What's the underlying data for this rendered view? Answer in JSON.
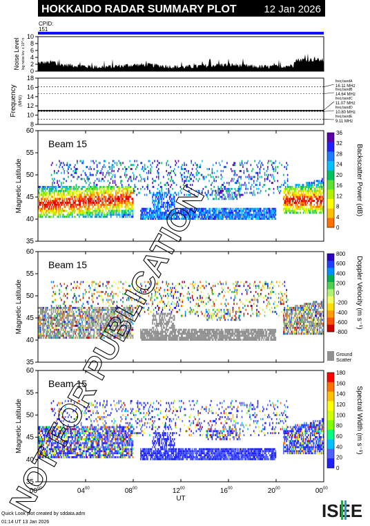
{
  "header": {
    "title": "HOKKAIDO RADAR SUMMARY PLOT",
    "date": "12 Jan 2026",
    "cpid_label": "CPID:",
    "cpid_value": "151"
  },
  "noise_panel": {
    "ylabel": "Noise Level",
    "ylabel_units": "log noise lev. x 10^-n",
    "yticks": [
      "0",
      "2",
      "4",
      "6",
      "8",
      "10"
    ],
    "ylim": [
      0,
      10
    ]
  },
  "freq_panel": {
    "ylabel": "Frequency",
    "ylabel_units": "(MHz)",
    "yticks": [
      "8",
      "10",
      "12",
      "14",
      "16",
      "18"
    ],
    "ylim": [
      8,
      18
    ],
    "bands": [
      {
        "label": "freq bandA",
        "value": "16.11 MHz",
        "mhz": 16.11
      },
      {
        "label": "freq bandB",
        "value": "14.64 MHz",
        "mhz": 14.64
      },
      {
        "label": "freq bandC",
        "value": "11.07 MHz",
        "mhz": 11.07
      },
      {
        "label": "freq bandD",
        "value": "10.80 MHz",
        "mhz": 10.8
      },
      {
        "label": "freq bandE",
        "value": "9.11 MHz",
        "mhz": 9.11
      }
    ]
  },
  "panels": [
    {
      "beam": "Beam 15",
      "ylabel": "Magnetic Latitude",
      "cbar_label": "Backscatter Power (dB)",
      "cbar_ticks": [
        "0",
        "4",
        "8",
        "12",
        "16",
        "20",
        "24",
        "28",
        "32",
        "36"
      ]
    },
    {
      "beam": "Beam 15",
      "ylabel": "Magnetic Latitude",
      "cbar_label": "Doppler Velocity (m s⁻¹)",
      "cbar_ticks": [
        "-800",
        "-600",
        "-400",
        "-200",
        "0",
        "200",
        "400",
        "600",
        "800"
      ],
      "ground_label_1": "Ground",
      "ground_label_2": "Scatter"
    },
    {
      "beam": "Beam 15",
      "ylabel": "Magnetic Latitude",
      "cbar_label": "Spectral Width (m s⁻¹)",
      "cbar_ticks": [
        "0",
        "20",
        "40",
        "60",
        "80",
        "100",
        "120",
        "140",
        "160",
        "180"
      ]
    }
  ],
  "lat_ticks": [
    "35",
    "40",
    "45",
    "50",
    "55",
    "60"
  ],
  "lat_range": [
    35,
    60
  ],
  "x_axis": {
    "label": "UT",
    "ticks": [
      {
        "h": "00",
        "m": "00"
      },
      {
        "h": "04",
        "m": "00"
      },
      {
        "h": "08",
        "m": "00"
      },
      {
        "h": "12",
        "m": "00"
      },
      {
        "h": "16",
        "m": "00"
      },
      {
        "h": "20",
        "m": "00"
      },
      {
        "h": "00",
        "m": "00"
      }
    ]
  },
  "watermark": "NOT FOR PUBLICATION",
  "footer": {
    "line1": "Quick Look plot created by sddata.adm",
    "line2": "01:14 UT 13 Jan 2026",
    "logo": "ISEE"
  },
  "chart_data": {
    "type": "heatmap",
    "x_range_ut_hours": [
      0,
      24
    ],
    "y_range_mlat": [
      35,
      60
    ],
    "series": [
      "Backscatter Power",
      "Doppler Velocity",
      "Spectral Width"
    ]
  }
}
